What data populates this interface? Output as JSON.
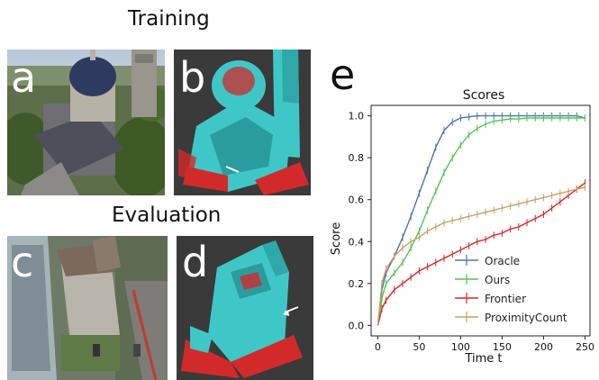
{
  "labels": {
    "training": "Training",
    "evaluation": "Evaluation",
    "panel_a": "a",
    "panel_b": "b",
    "panel_c": "c",
    "panel_d": "d",
    "panel_e": "e"
  },
  "colors": {
    "oracle": "#4c72b0",
    "ours": "#55c455",
    "frontier": "#d62728",
    "proximity": "#c8a062",
    "render_bg": "#3a3a3a",
    "voxel_cyan": "#3fc7c7",
    "voxel_red": "#d22a2a"
  },
  "chart_data": {
    "type": "line",
    "title": "Scores",
    "xlabel": "Time t",
    "ylabel": "Score",
    "xlim": [
      -8,
      256
    ],
    "ylim": [
      -0.05,
      1.05
    ],
    "xticks": [
      0,
      50,
      100,
      150,
      200,
      250
    ],
    "yticks": [
      0.0,
      0.2,
      0.4,
      0.6,
      0.8,
      1.0
    ],
    "xtick_labels": [
      "0",
      "50",
      "100",
      "150",
      "200",
      "250"
    ],
    "ytick_labels": [
      "0.0",
      "0.2",
      "0.4",
      "0.6",
      "0.8",
      "1.0"
    ],
    "legend_position": "lower-right",
    "series": [
      {
        "name": "Oracle",
        "x": [
          0,
          5,
          10,
          20,
          30,
          40,
          50,
          60,
          70,
          80,
          90,
          100,
          110,
          120,
          130,
          140,
          150,
          160,
          170,
          180,
          190,
          200,
          210,
          220,
          230,
          240,
          250
        ],
        "y": [
          0.0,
          0.17,
          0.25,
          0.33,
          0.42,
          0.52,
          0.63,
          0.74,
          0.85,
          0.93,
          0.97,
          0.99,
          0.995,
          1.0,
          1.0,
          1.0,
          1.0,
          1.0,
          1.0,
          1.0,
          1.0,
          1.0,
          1.0,
          1.0,
          1.0,
          1.0,
          0.99
        ]
      },
      {
        "name": "Ours",
        "x": [
          0,
          5,
          10,
          20,
          30,
          40,
          50,
          60,
          70,
          80,
          90,
          100,
          110,
          120,
          130,
          140,
          150,
          160,
          170,
          180,
          190,
          200,
          210,
          220,
          230,
          240,
          250
        ],
        "y": [
          0.0,
          0.13,
          0.2,
          0.25,
          0.3,
          0.37,
          0.45,
          0.55,
          0.64,
          0.73,
          0.8,
          0.86,
          0.91,
          0.94,
          0.96,
          0.975,
          0.98,
          0.985,
          0.985,
          0.99,
          0.99,
          0.99,
          0.99,
          0.99,
          0.99,
          0.99,
          0.99
        ]
      },
      {
        "name": "Frontier",
        "x": [
          0,
          5,
          10,
          20,
          30,
          40,
          50,
          60,
          70,
          80,
          90,
          100,
          110,
          120,
          130,
          140,
          150,
          160,
          170,
          180,
          190,
          200,
          210,
          220,
          230,
          240,
          250
        ],
        "y": [
          0.0,
          0.08,
          0.12,
          0.17,
          0.2,
          0.23,
          0.26,
          0.28,
          0.3,
          0.32,
          0.34,
          0.36,
          0.38,
          0.4,
          0.41,
          0.43,
          0.44,
          0.46,
          0.47,
          0.49,
          0.51,
          0.53,
          0.56,
          0.59,
          0.62,
          0.65,
          0.68
        ]
      },
      {
        "name": "ProximityCount",
        "x": [
          0,
          5,
          10,
          20,
          30,
          40,
          50,
          60,
          70,
          80,
          90,
          100,
          110,
          120,
          130,
          140,
          150,
          160,
          170,
          180,
          190,
          200,
          210,
          220,
          230,
          240,
          250
        ],
        "y": [
          0.0,
          0.2,
          0.27,
          0.33,
          0.37,
          0.4,
          0.42,
          0.45,
          0.47,
          0.49,
          0.5,
          0.51,
          0.52,
          0.53,
          0.54,
          0.55,
          0.56,
          0.57,
          0.58,
          0.59,
          0.6,
          0.61,
          0.62,
          0.63,
          0.64,
          0.65,
          0.66
        ]
      }
    ]
  }
}
